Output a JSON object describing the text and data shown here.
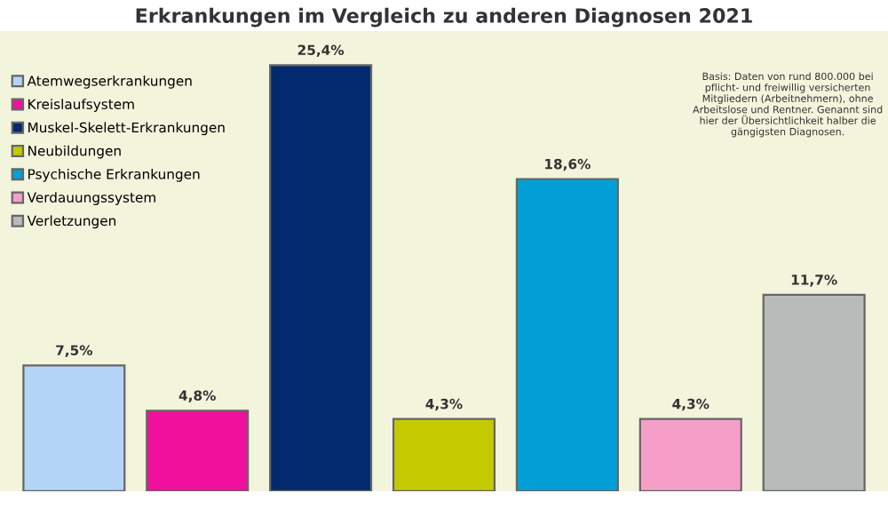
{
  "chart_data": {
    "type": "bar",
    "title": "Erkrankungen im Vergleich zu anderen Diagnosen 2021",
    "categories": [
      null,
      null,
      null,
      null,
      null,
      null,
      null
    ],
    "stacked": true,
    "series": [
      {
        "name": "Atemwegserkrankungen",
        "color": "#b3d4f7",
        "values": [
          7.5,
          null,
          null,
          null,
          null,
          null,
          null
        ],
        "value_labels": [
          "7,5%",
          null,
          null,
          null,
          null,
          null,
          null
        ]
      },
      {
        "name": "Kreislaufsystem",
        "color": "#f0109c",
        "values": [
          null,
          4.8,
          null,
          null,
          null,
          null,
          null
        ],
        "value_labels": [
          null,
          "4,8%",
          null,
          null,
          null,
          null,
          null
        ]
      },
      {
        "name": "Muskel-Skelett-Erkrankungen",
        "color": "#032a6e",
        "values": [
          null,
          null,
          25.4,
          null,
          null,
          null,
          null
        ],
        "value_labels": [
          null,
          null,
          "25,4%",
          null,
          null,
          null,
          null
        ]
      },
      {
        "name": "Neubildungen",
        "color": "#c3cb00",
        "values": [
          null,
          null,
          null,
          4.3,
          null,
          null,
          null
        ],
        "value_labels": [
          null,
          null,
          null,
          "4,3%",
          null,
          null,
          null
        ]
      },
      {
        "name": "Psychische Erkrankungen",
        "color": "#02a0d6",
        "values": [
          null,
          null,
          null,
          null,
          18.6,
          null,
          null
        ],
        "value_labels": [
          null,
          null,
          null,
          null,
          "18,6%",
          null,
          null
        ]
      },
      {
        "name": "Verdauungssystem",
        "color": "#f59fc8",
        "values": [
          null,
          null,
          null,
          null,
          null,
          4.3,
          null
        ],
        "value_labels": [
          null,
          null,
          null,
          null,
          null,
          "4,3%",
          null
        ]
      },
      {
        "name": "Verletzungen",
        "color": "#b9bbbb",
        "values": [
          null,
          null,
          null,
          null,
          null,
          null,
          11.7
        ],
        "value_labels": [
          null,
          null,
          null,
          null,
          null,
          null,
          "11,7%"
        ]
      }
    ],
    "annotations": [
      "Basis: Daten von rund 800.000 bei pflicht- und freiwillig versicherten Mitgliedern (Arbeitnehmern), ohne Arbeitslose und Rentner. Genannt sind hier der Übersichtlichkeit halber die gängigsten Diagnosen."
    ],
    "legend": "top left"
  }
}
